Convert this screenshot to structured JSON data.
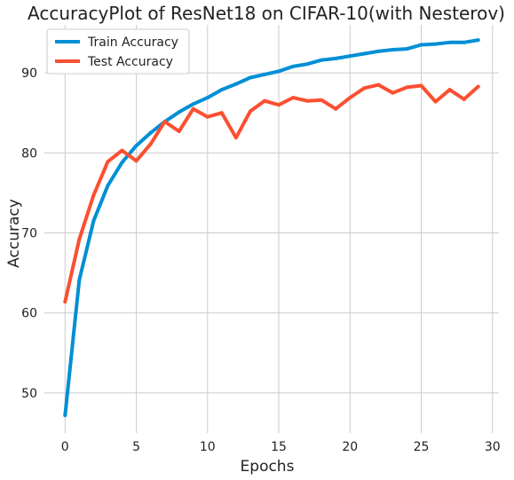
{
  "chart_data": {
    "type": "line",
    "title": "AccuracyPlot of ResNet18 on CIFAR-10(with Nesterov)",
    "xlabel": "Epochs",
    "ylabel": "Accuracy",
    "xlim": [
      -1.45,
      30.45
    ],
    "ylim": [
      45.0,
      96.0
    ],
    "xticks": [
      0,
      5,
      10,
      15,
      20,
      25,
      30
    ],
    "yticks": [
      50,
      60,
      70,
      80,
      90
    ],
    "grid": true,
    "legend_position": "top-left",
    "x": [
      0,
      1,
      2,
      3,
      4,
      5,
      6,
      7,
      8,
      9,
      10,
      11,
      12,
      13,
      14,
      15,
      16,
      17,
      18,
      19,
      20,
      21,
      22,
      23,
      24,
      25,
      26,
      27,
      28,
      29
    ],
    "series": [
      {
        "name": "Train Accuracy",
        "color": "#008fd5",
        "values": [
          47.2,
          64.1,
          71.5,
          75.9,
          78.8,
          80.9,
          82.5,
          83.9,
          85.1,
          86.1,
          86.9,
          87.9,
          88.6,
          89.4,
          89.8,
          90.2,
          90.8,
          91.1,
          91.6,
          91.8,
          92.1,
          92.4,
          92.7,
          92.9,
          93.0,
          93.5,
          93.6,
          93.8,
          93.8,
          94.1
        ]
      },
      {
        "name": "Test Accuracy",
        "color": "#fc4f30",
        "values": [
          61.4,
          69.2,
          74.7,
          78.9,
          80.3,
          79.0,
          81.1,
          83.9,
          82.7,
          85.5,
          84.5,
          85.0,
          81.9,
          85.2,
          86.5,
          86.0,
          86.9,
          86.5,
          86.6,
          85.5,
          86.9,
          88.1,
          88.5,
          87.5,
          88.2,
          88.4,
          86.4,
          87.9,
          86.7,
          88.3
        ]
      }
    ]
  }
}
